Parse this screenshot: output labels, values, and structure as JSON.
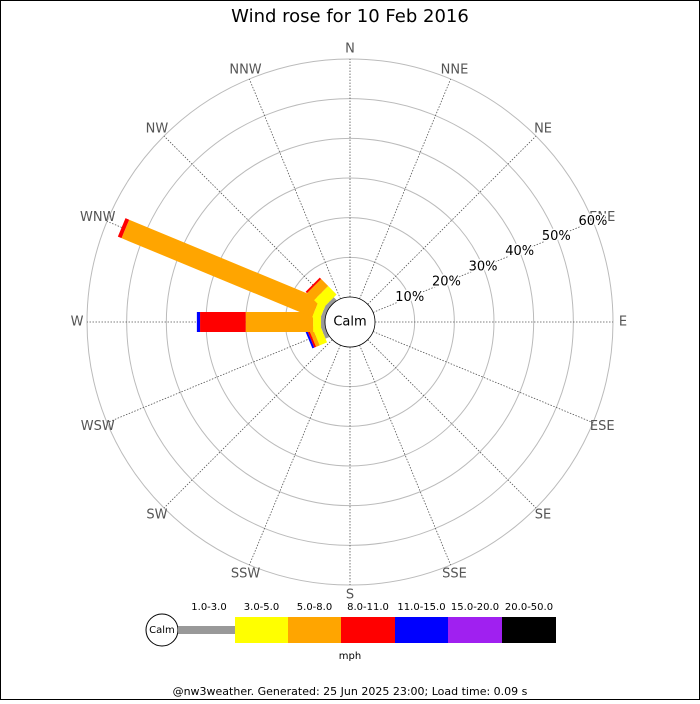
{
  "chart_data": {
    "type": "windrose",
    "title": "Wind rose for 10 Feb 2016",
    "categories": [
      "N",
      "NNE",
      "NE",
      "ENE",
      "E",
      "ESE",
      "SE",
      "SSE",
      "S",
      "SSW",
      "SW",
      "WSW",
      "W",
      "WNW",
      "NW",
      "NNW"
    ],
    "center_label": "Calm",
    "series": [
      {
        "name": "1.0-3.0",
        "color": "#999999",
        "values": [
          0,
          0,
          0,
          0,
          0,
          0,
          0,
          0,
          0,
          0,
          0,
          1,
          1,
          1,
          1,
          0
        ]
      },
      {
        "name": "3.0-5.0",
        "color": "#ffff00",
        "values": [
          0,
          0,
          0,
          0,
          0,
          0,
          0,
          0,
          0,
          0,
          0,
          2,
          2,
          2,
          3,
          0
        ]
      },
      {
        "name": "5.0-8.0",
        "color": "#ffa500",
        "values": [
          0,
          0,
          0,
          0,
          0,
          0,
          0,
          0,
          0,
          0,
          0,
          1,
          17,
          52,
          2.5,
          0
        ]
      },
      {
        "name": "8.0-11.0",
        "color": "#ff0000",
        "values": [
          0,
          0,
          0,
          0,
          0,
          0,
          0,
          0,
          0,
          0,
          0,
          0.5,
          11.5,
          1,
          0.5,
          0
        ]
      },
      {
        "name": "11.0-15.0",
        "color": "#0000ff",
        "values": [
          0,
          0,
          0,
          0,
          0,
          0,
          0,
          0,
          0,
          0,
          0,
          0.5,
          0.8,
          0,
          0,
          0
        ]
      },
      {
        "name": "15.0-20.0",
        "color": "#a020f0",
        "values": [
          0,
          0,
          0,
          0,
          0,
          0,
          0,
          0,
          0,
          0,
          0,
          0,
          0,
          0,
          0,
          0
        ]
      },
      {
        "name": "20.0-50.0",
        "color": "#000000",
        "values": [
          0,
          0,
          0,
          0,
          0,
          0,
          0,
          0,
          0,
          0,
          0,
          0,
          0,
          0,
          0,
          0
        ]
      }
    ],
    "rlim": [
      0,
      60
    ],
    "rticks": [
      {
        "value": 10,
        "label": "10%"
      },
      {
        "value": 20,
        "label": "20%"
      },
      {
        "value": 30,
        "label": "30%"
      },
      {
        "value": 40,
        "label": "40%"
      },
      {
        "value": 50,
        "label": "50%"
      },
      {
        "value": 60,
        "label": "60%"
      }
    ],
    "legend_unit": "mph",
    "footer": "@nw3weather. Generated: 25 Jun 2025 23:00; Load time: 0.09 s"
  }
}
